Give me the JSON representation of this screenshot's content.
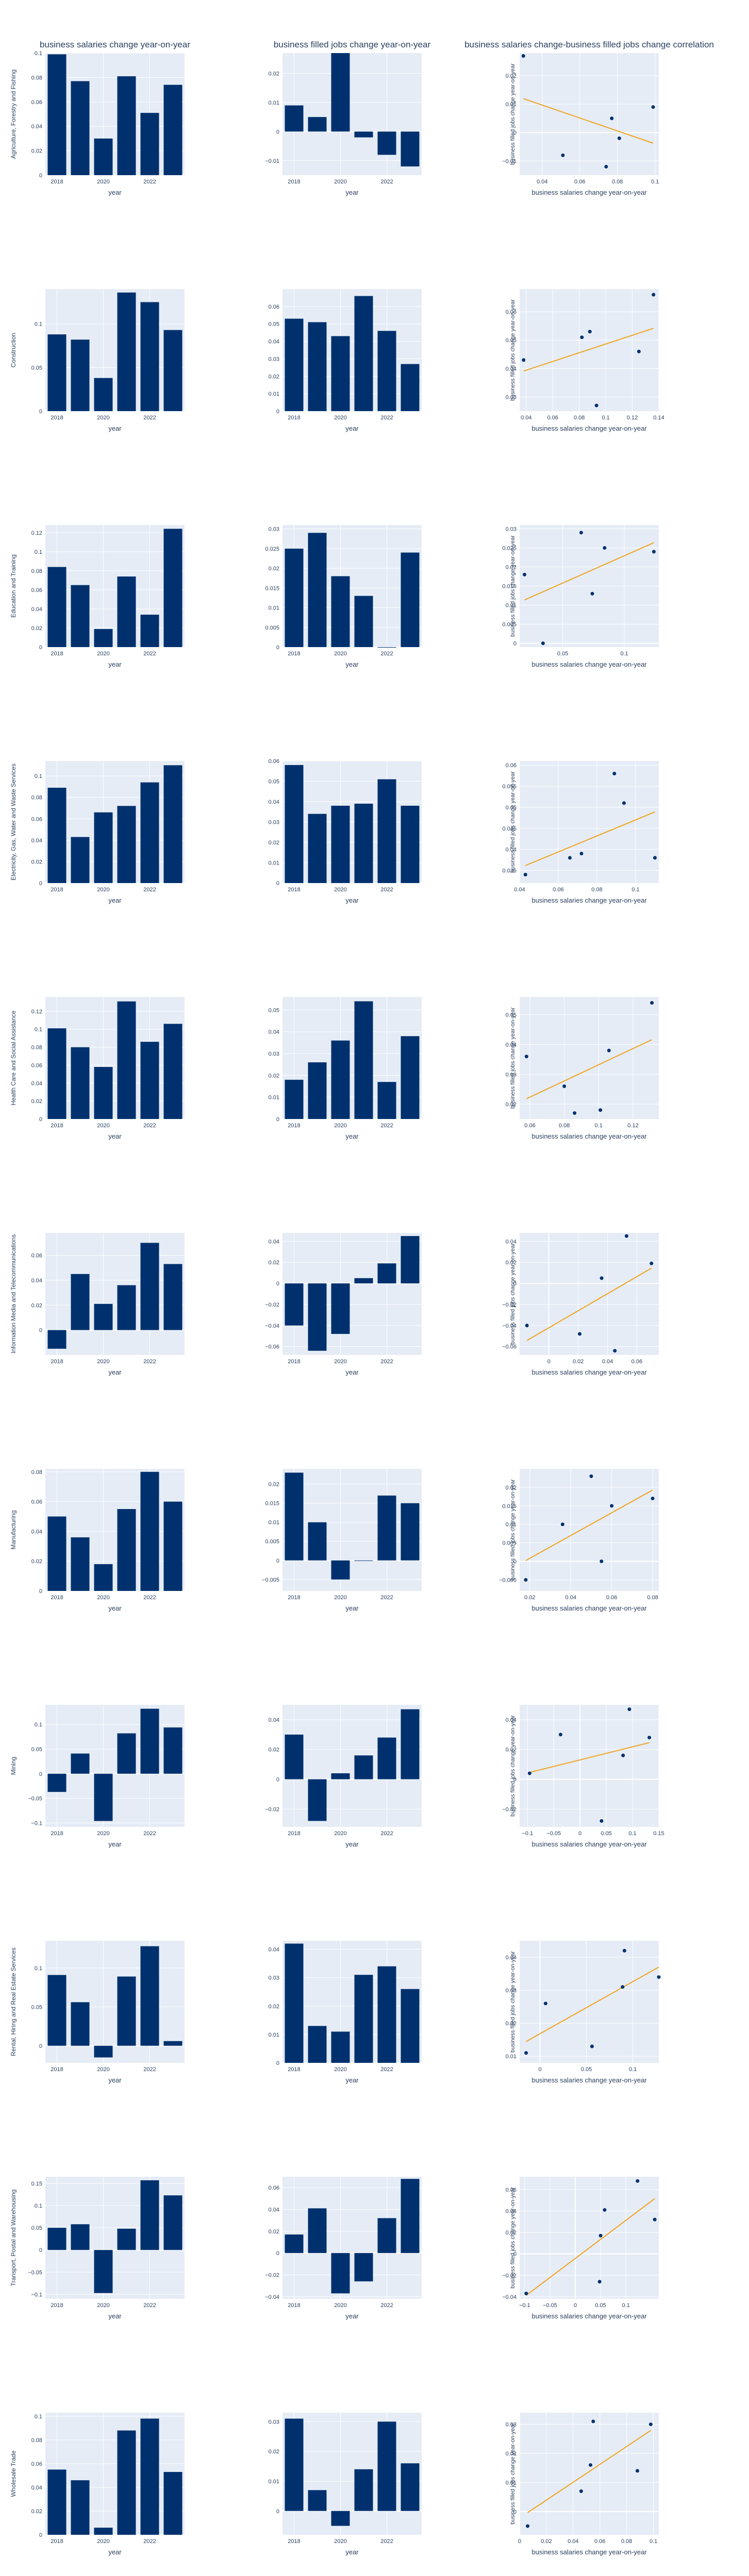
{
  "columns": [
    "business salaries change year-on-year",
    "business filled jobs change year-on-year",
    "business salaries change-business filled jobs change correlation"
  ],
  "axis_labels": {
    "x_bar": "year",
    "x_scatter": "business salaries change year-on-year",
    "y_scatter": "business filled jobs change year-on-year"
  },
  "colors": {
    "bar": "#00316e",
    "point": "#00316e",
    "trend": "#f0a41e",
    "plot_bg": "#e5ecf6",
    "grid": "#ffffff",
    "text": "#2a3f5f"
  },
  "chart_data": [
    {
      "type": "bar+scatter",
      "industry": "Agriculture, Forestry and Fishing",
      "years": [
        2018,
        2019,
        2020,
        2021,
        2022,
        2023
      ],
      "salaries": [
        0.099,
        0.077,
        0.03,
        0.081,
        0.051,
        0.074
      ],
      "jobs": [
        0.009,
        0.005,
        0.027,
        -0.002,
        -0.008,
        -0.012
      ],
      "bar1": {
        "ylim": [
          0,
          0.1
        ],
        "yticks": [
          0,
          0.02,
          0.04,
          0.06,
          0.08,
          0.1
        ]
      },
      "bar2": {
        "ylim": [
          -0.015,
          0.027
        ],
        "yticks": [
          -0.01,
          0,
          0.01,
          0.02
        ]
      },
      "scatter": {
        "xlim": [
          0.028,
          0.102
        ],
        "xticks": [
          0.04,
          0.06,
          0.08,
          0.1
        ],
        "ylim": [
          -0.015,
          0.028
        ],
        "yticks": [
          -0.01,
          0,
          0.01,
          0.02
        ]
      }
    },
    {
      "type": "bar+scatter",
      "industry": "Construction",
      "years": [
        2018,
        2019,
        2020,
        2021,
        2022,
        2023
      ],
      "salaries": [
        0.088,
        0.082,
        0.038,
        0.136,
        0.125,
        0.093
      ],
      "jobs": [
        0.053,
        0.051,
        0.043,
        0.066,
        0.046,
        0.027
      ],
      "bar1": {
        "ylim": [
          0,
          0.14
        ],
        "yticks": [
          0,
          0.05,
          0.1
        ]
      },
      "bar2": {
        "ylim": [
          0,
          0.07
        ],
        "yticks": [
          0,
          0.01,
          0.02,
          0.03,
          0.04,
          0.05,
          0.06
        ]
      },
      "scatter": {
        "xlim": [
          0.035,
          0.14
        ],
        "xticks": [
          0.04,
          0.06,
          0.08,
          0.1,
          0.12,
          0.14
        ],
        "ylim": [
          0.025,
          0.068
        ],
        "yticks": [
          0.03,
          0.04,
          0.05,
          0.06
        ]
      }
    },
    {
      "type": "bar+scatter",
      "industry": "Education and Training",
      "years": [
        2018,
        2019,
        2020,
        2021,
        2022,
        2023
      ],
      "salaries": [
        0.084,
        0.065,
        0.019,
        0.074,
        0.034,
        0.124
      ],
      "jobs": [
        0.025,
        0.029,
        0.018,
        0.013,
        0.0,
        0.024
      ],
      "bar1": {
        "ylim": [
          0,
          0.128
        ],
        "yticks": [
          0,
          0.02,
          0.04,
          0.06,
          0.08,
          0.1,
          0.12
        ]
      },
      "bar2": {
        "ylim": [
          0,
          0.031
        ],
        "yticks": [
          0,
          0.005,
          0.01,
          0.015,
          0.02,
          0.025,
          0.03
        ]
      },
      "scatter": {
        "xlim": [
          0.015,
          0.128
        ],
        "xticks": [
          0.05,
          0.1
        ],
        "ylim": [
          -0.001,
          0.031
        ],
        "yticks": [
          0,
          0.005,
          0.01,
          0.015,
          0.02,
          0.025,
          0.03
        ]
      }
    },
    {
      "type": "bar+scatter",
      "industry": "Electricity, Gas, Water and Waste Services",
      "years": [
        2018,
        2019,
        2020,
        2021,
        2022,
        2023
      ],
      "salaries": [
        0.089,
        0.043,
        0.066,
        0.072,
        0.094,
        0.11
      ],
      "jobs": [
        0.058,
        0.034,
        0.038,
        0.039,
        0.051,
        0.038
      ],
      "bar1": {
        "ylim": [
          0,
          0.114
        ],
        "yticks": [
          0,
          0.02,
          0.04,
          0.06,
          0.08,
          0.1
        ]
      },
      "bar2": {
        "ylim": [
          0,
          0.06
        ],
        "yticks": [
          0,
          0.01,
          0.02,
          0.03,
          0.04,
          0.05,
          0.06
        ]
      },
      "scatter": {
        "xlim": [
          0.04,
          0.112
        ],
        "xticks": [
          0.04,
          0.06,
          0.08,
          0.1
        ],
        "ylim": [
          0.032,
          0.061
        ],
        "yticks": [
          0.035,
          0.04,
          0.045,
          0.05,
          0.055,
          0.06
        ]
      }
    },
    {
      "type": "bar+scatter",
      "industry": "Health Care and Social Assistance",
      "years": [
        2018,
        2019,
        2020,
        2021,
        2022,
        2023
      ],
      "salaries": [
        0.101,
        0.08,
        0.058,
        0.131,
        0.086,
        0.106
      ],
      "jobs": [
        0.018,
        0.026,
        0.036,
        0.054,
        0.017,
        0.038
      ],
      "bar1": {
        "ylim": [
          0,
          0.136
        ],
        "yticks": [
          0,
          0.02,
          0.04,
          0.06,
          0.08,
          0.1,
          0.12
        ]
      },
      "bar2": {
        "ylim": [
          0,
          0.056
        ],
        "yticks": [
          0,
          0.01,
          0.02,
          0.03,
          0.04,
          0.05
        ]
      },
      "scatter": {
        "xlim": [
          0.054,
          0.135
        ],
        "xticks": [
          0.06,
          0.08,
          0.1,
          0.12
        ],
        "ylim": [
          0.015,
          0.056
        ],
        "yticks": [
          0.02,
          0.03,
          0.04,
          0.05
        ]
      }
    },
    {
      "type": "bar+scatter",
      "industry": "Information Media and Telecommunications",
      "years": [
        2018,
        2019,
        2020,
        2021,
        2022,
        2023
      ],
      "salaries": [
        -0.015,
        0.045,
        0.021,
        0.036,
        0.07,
        0.053
      ],
      "jobs": [
        -0.04,
        -0.064,
        -0.048,
        0.005,
        0.019,
        0.045
      ],
      "bar1": {
        "ylim": [
          -0.02,
          0.078
        ],
        "yticks": [
          0,
          0.02,
          0.04,
          0.06
        ]
      },
      "bar2": {
        "ylim": [
          -0.068,
          0.048
        ],
        "yticks": [
          -0.06,
          -0.04,
          -0.02,
          0,
          0.02,
          0.04
        ]
      },
      "scatter": {
        "xlim": [
          -0.02,
          0.075
        ],
        "xticks": [
          0,
          0.02,
          0.04,
          0.06
        ],
        "ylim": [
          -0.068,
          0.048
        ],
        "yticks": [
          -0.06,
          -0.04,
          -0.02,
          0,
          0.02,
          0.04
        ]
      }
    },
    {
      "type": "bar+scatter",
      "industry": "Manufacturing",
      "years": [
        2018,
        2019,
        2020,
        2021,
        2022,
        2023
      ],
      "salaries": [
        0.05,
        0.036,
        0.018,
        0.055,
        0.08,
        0.06
      ],
      "jobs": [
        0.023,
        0.01,
        -0.005,
        0.0,
        0.017,
        0.015
      ],
      "bar1": {
        "ylim": [
          0,
          0.082
        ],
        "yticks": [
          0,
          0.02,
          0.04,
          0.06,
          0.08
        ]
      },
      "bar2": {
        "ylim": [
          -0.008,
          0.024
        ],
        "yticks": [
          -0.005,
          0,
          0.005,
          0.01,
          0.015,
          0.02
        ]
      },
      "scatter": {
        "xlim": [
          0.015,
          0.083
        ],
        "xticks": [
          0.02,
          0.04,
          0.06,
          0.08
        ],
        "ylim": [
          -0.008,
          0.025
        ],
        "yticks": [
          -0.005,
          0,
          0.005,
          0.01,
          0.015,
          0.02
        ]
      }
    },
    {
      "type": "bar+scatter",
      "industry": "Mining",
      "years": [
        2018,
        2019,
        2020,
        2021,
        2022,
        2023
      ],
      "salaries": [
        -0.037,
        0.041,
        -0.096,
        0.082,
        0.132,
        0.094
      ],
      "jobs": [
        0.03,
        -0.028,
        0.004,
        0.016,
        0.028,
        0.047
      ],
      "bar1": {
        "ylim": [
          -0.108,
          0.14
        ],
        "yticks": [
          -0.1,
          -0.05,
          0,
          0.05,
          0.1
        ]
      },
      "bar2": {
        "ylim": [
          -0.032,
          0.05
        ],
        "yticks": [
          -0.02,
          0,
          0.02,
          0.04
        ]
      },
      "scatter": {
        "xlim": [
          -0.115,
          0.15
        ],
        "xticks": [
          -0.1,
          -0.05,
          0,
          0.05,
          0.1,
          0.15
        ],
        "ylim": [
          -0.032,
          0.05
        ],
        "yticks": [
          -0.02,
          0,
          0.02,
          0.04
        ]
      }
    },
    {
      "type": "bar+scatter",
      "industry": "Rental, Hiring and Real Estate Services",
      "years": [
        2018,
        2019,
        2020,
        2021,
        2022,
        2023
      ],
      "salaries": [
        0.091,
        0.056,
        -0.015,
        0.089,
        0.128,
        0.006
      ],
      "jobs": [
        0.042,
        0.013,
        0.011,
        0.031,
        0.034,
        0.026
      ],
      "bar1": {
        "ylim": [
          -0.022,
          0.135
        ],
        "yticks": [
          0,
          0.05,
          0.1
        ]
      },
      "bar2": {
        "ylim": [
          0,
          0.043
        ],
        "yticks": [
          0,
          0.01,
          0.02,
          0.03,
          0.04
        ]
      },
      "scatter": {
        "xlim": [
          -0.022,
          0.128
        ],
        "xticks": [
          0,
          0.05,
          0.1
        ],
        "ylim": [
          0.008,
          0.045
        ],
        "yticks": [
          0.01,
          0.02,
          0.03,
          0.04
        ]
      }
    },
    {
      "type": "bar+scatter",
      "industry": "Transport, Postal and Warehousing",
      "years": [
        2018,
        2019,
        2020,
        2021,
        2022,
        2023
      ],
      "salaries": [
        0.05,
        0.058,
        -0.097,
        0.048,
        0.157,
        0.123
      ],
      "jobs": [
        0.017,
        0.041,
        -0.037,
        -0.026,
        0.032,
        0.068
      ],
      "bar1": {
        "ylim": [
          -0.11,
          0.165
        ],
        "yticks": [
          -0.1,
          -0.05,
          0,
          0.05,
          0.1,
          0.15
        ]
      },
      "bar2": {
        "ylim": [
          -0.042,
          0.07
        ],
        "yticks": [
          -0.04,
          -0.02,
          0,
          0.02,
          0.04,
          0.06
        ]
      },
      "scatter": {
        "xlim": [
          -0.11,
          0.165
        ],
        "xticks": [
          -0.1,
          -0.05,
          0,
          0.05,
          0.1
        ],
        "ylim": [
          -0.042,
          0.072
        ],
        "yticks": [
          -0.04,
          -0.02,
          0,
          0.02,
          0.04,
          0.06
        ]
      }
    },
    {
      "type": "bar+scatter",
      "industry": "Wholesale Trade",
      "years": [
        2018,
        2019,
        2020,
        2021,
        2022,
        2023
      ],
      "salaries": [
        0.055,
        0.046,
        0.006,
        0.088,
        0.098,
        0.053
      ],
      "jobs": [
        0.031,
        0.007,
        -0.005,
        0.014,
        0.03,
        0.016
      ],
      "bar1": {
        "ylim": [
          0,
          0.103
        ],
        "yticks": [
          0,
          0.02,
          0.04,
          0.06,
          0.08,
          0.1
        ]
      },
      "bar2": {
        "ylim": [
          -0.008,
          0.033
        ],
        "yticks": [
          0,
          0.01,
          0.02,
          0.03
        ]
      },
      "scatter": {
        "xlim": [
          0.0,
          0.104
        ],
        "xticks": [
          0,
          0.02,
          0.04,
          0.06,
          0.08,
          0.1
        ],
        "ylim": [
          -0.008,
          0.034
        ],
        "yticks": [
          0,
          0.01,
          0.02,
          0.03
        ]
      }
    }
  ]
}
